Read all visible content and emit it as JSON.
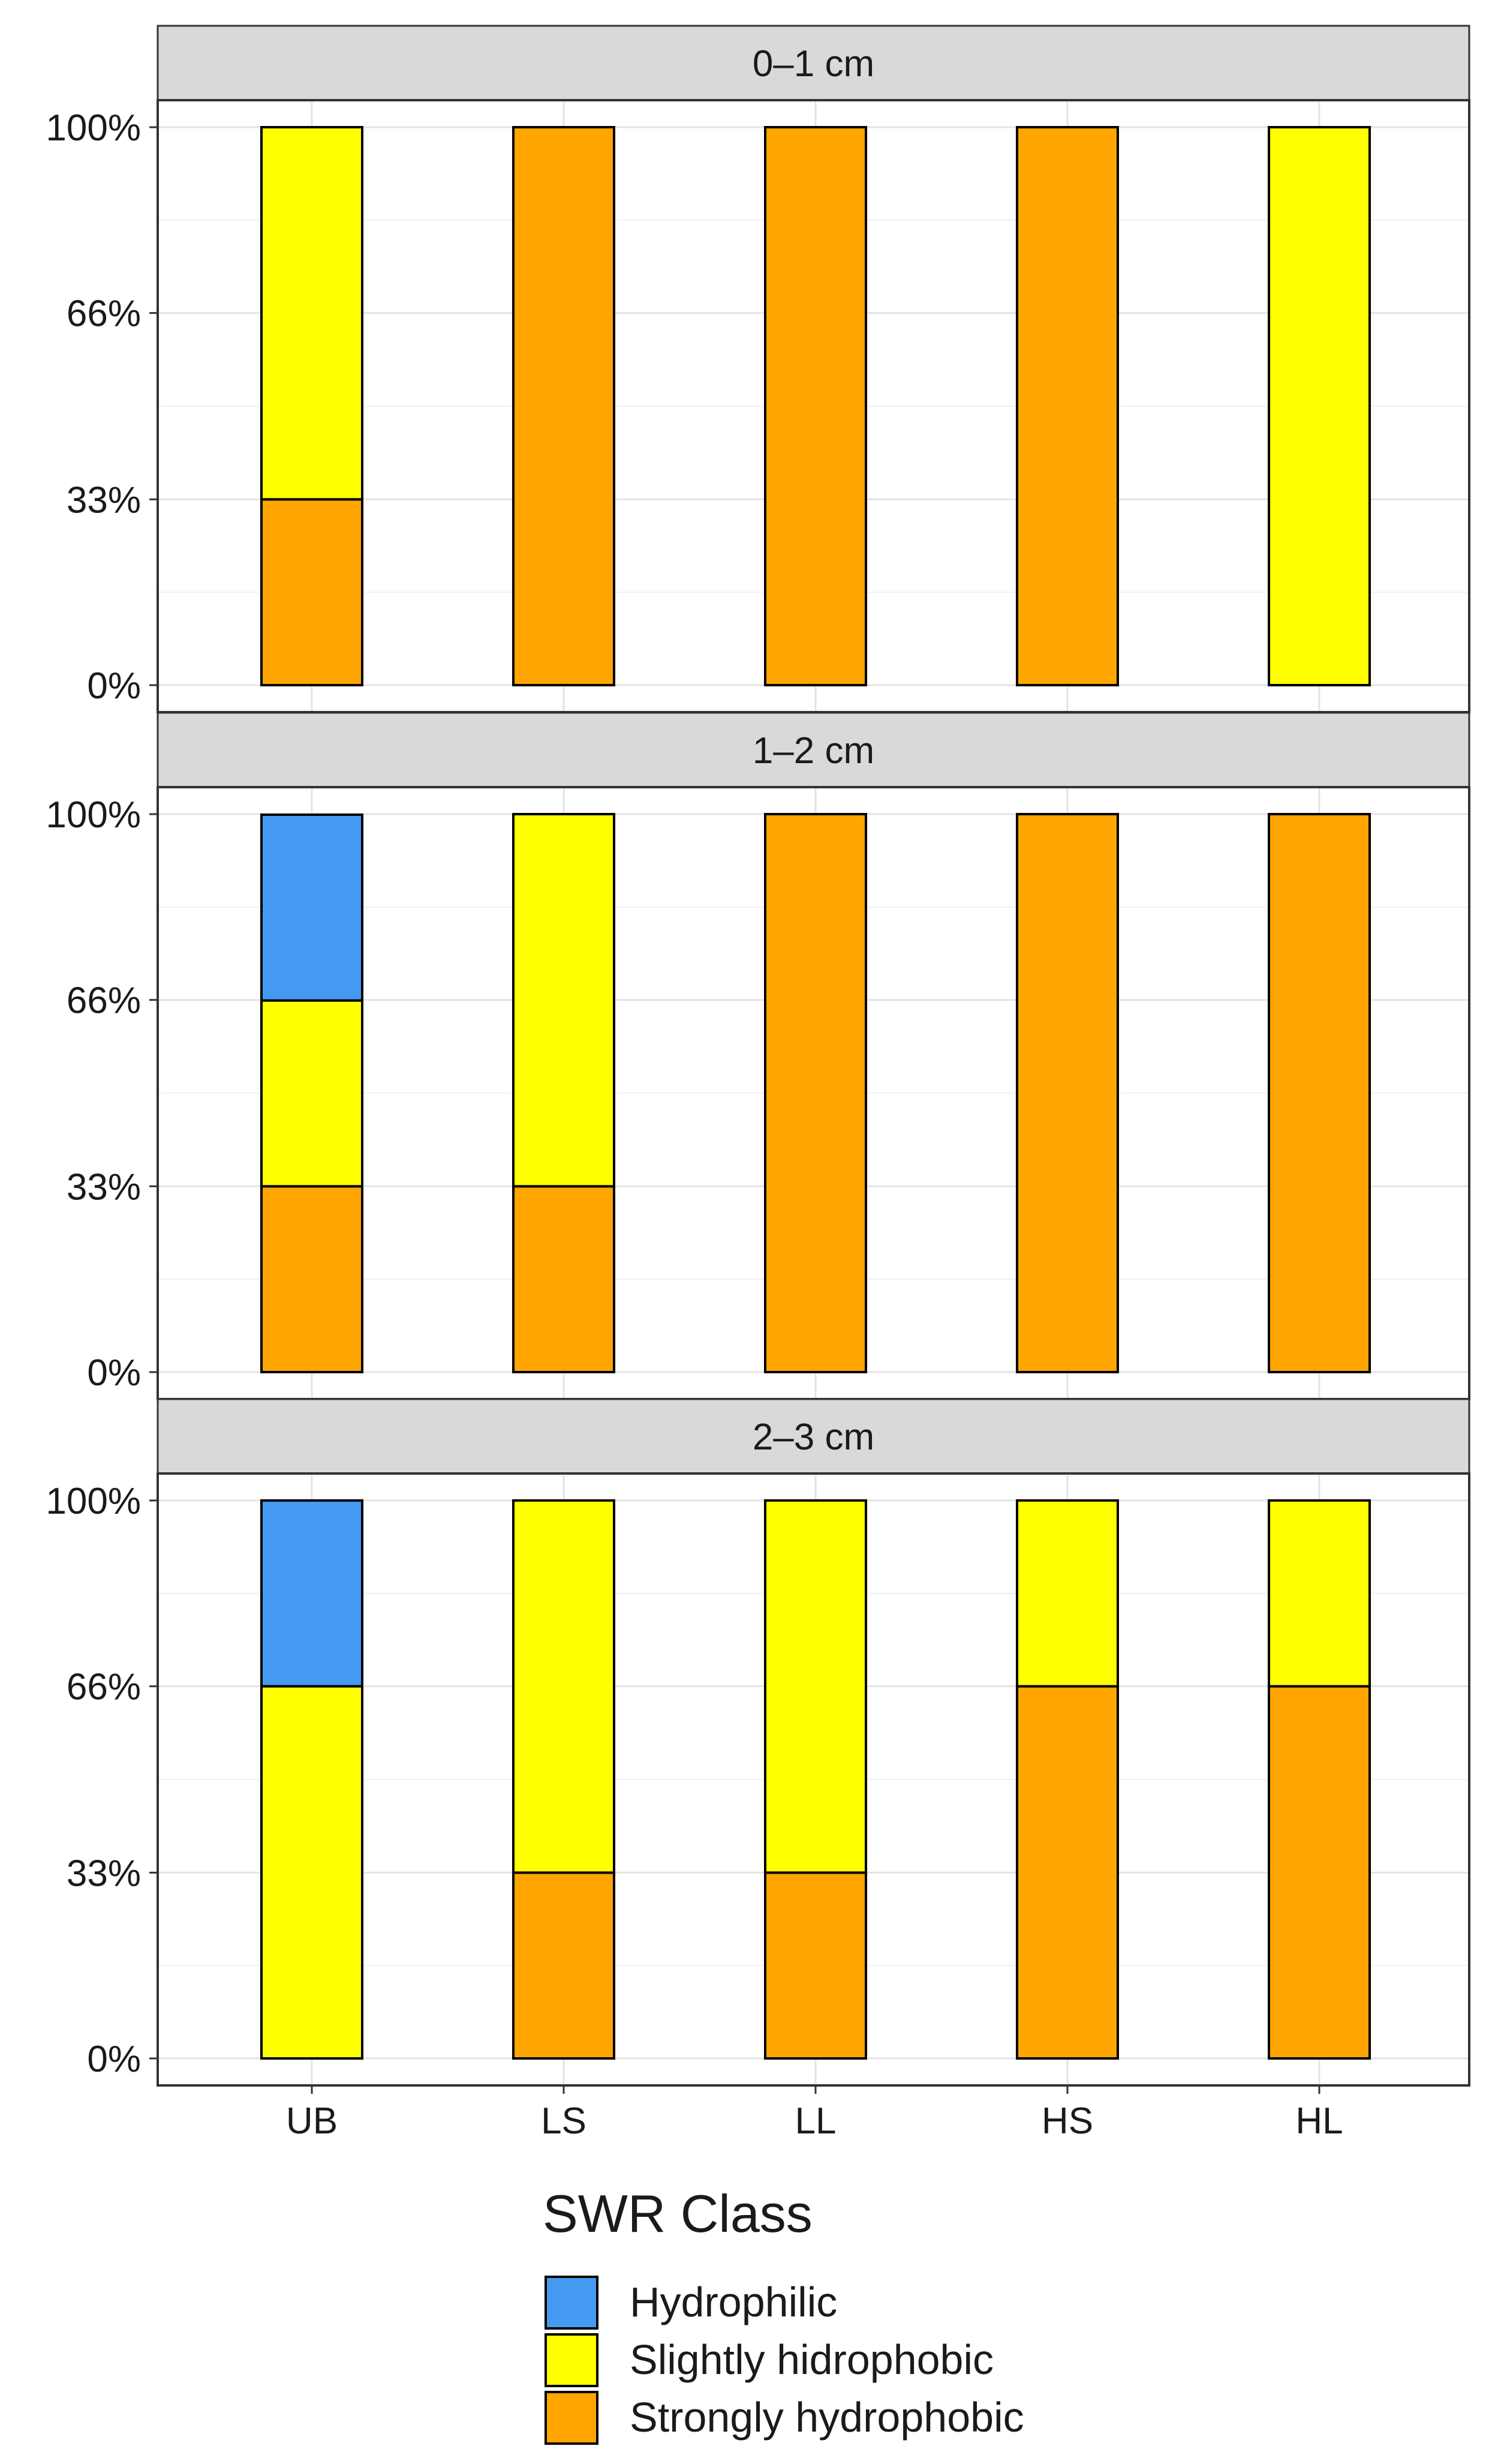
{
  "chart_data": {
    "type": "bar",
    "stacked": true,
    "categories": [
      "UB",
      "LS",
      "LL",
      "HS",
      "HL"
    ],
    "y_ticks": [
      "0%",
      "33%",
      "66%",
      "100%"
    ],
    "y_tick_values": [
      0,
      33.3,
      66.7,
      100
    ],
    "ylim": [
      0,
      100
    ],
    "grid": true,
    "legend": {
      "title": "SWR Class",
      "position": "bottom",
      "items": [
        {
          "name": "Hydrophilic",
          "color": "#4499F1"
        },
        {
          "name": "Slightly hidrophobic",
          "color": "#FFFF00"
        },
        {
          "name": "Strongly hydrophobic",
          "color": "#FFA500"
        }
      ]
    },
    "facets": [
      {
        "title": "0–1 cm",
        "series": [
          {
            "name": "Strongly hydrophobic",
            "values": [
              33.3,
              100,
              100,
              100,
              0
            ]
          },
          {
            "name": "Slightly hidrophobic",
            "values": [
              66.7,
              0,
              0,
              0,
              100
            ]
          },
          {
            "name": "Hydrophilic",
            "values": [
              0,
              0,
              0,
              0,
              0
            ]
          }
        ]
      },
      {
        "title": "1–2 cm",
        "series": [
          {
            "name": "Strongly hydrophobic",
            "values": [
              33.3,
              33.3,
              100,
              100,
              100
            ]
          },
          {
            "name": "Slightly hidrophobic",
            "values": [
              33.3,
              66.7,
              0,
              0,
              0
            ]
          },
          {
            "name": "Hydrophilic",
            "values": [
              33.3,
              0,
              0,
              0,
              0
            ]
          }
        ]
      },
      {
        "title": "2–3 cm",
        "series": [
          {
            "name": "Strongly hydrophobic",
            "values": [
              0,
              33.3,
              33.3,
              66.7,
              66.7
            ]
          },
          {
            "name": "Slightly hidrophobic",
            "values": [
              66.7,
              66.7,
              66.7,
              33.3,
              33.3
            ]
          },
          {
            "name": "Hydrophilic",
            "values": [
              33.3,
              0,
              0,
              0,
              0
            ]
          }
        ]
      }
    ]
  }
}
